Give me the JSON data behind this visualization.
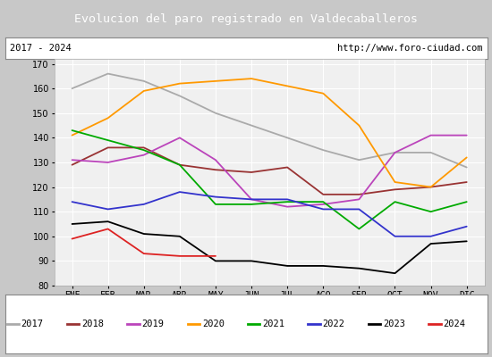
{
  "title": "Evolucion del paro registrado en Valdecaballeros",
  "subtitle_left": "2017 - 2024",
  "subtitle_right": "http://www.foro-ciudad.com",
  "title_bg_color": "#5b8dd9",
  "title_text_color": "#ffffff",
  "subtitle_bg_color": "#ffffff",
  "subtitle_text_color": "#000000",
  "plot_bg_color": "#f0f0f0",
  "outer_bg_color": "#c8c8c8",
  "months": [
    "ENE",
    "FEB",
    "MAR",
    "ABR",
    "MAY",
    "JUN",
    "JUL",
    "AGO",
    "SEP",
    "OCT",
    "NOV",
    "DIC"
  ],
  "ylim": [
    80,
    172
  ],
  "yticks": [
    80,
    90,
    100,
    110,
    120,
    130,
    140,
    150,
    160,
    170
  ],
  "series": {
    "2017": {
      "color": "#aaaaaa",
      "data": [
        160,
        166,
        163,
        157,
        150,
        145,
        140,
        135,
        131,
        134,
        134,
        128
      ]
    },
    "2018": {
      "color": "#993333",
      "data": [
        129,
        136,
        136,
        129,
        127,
        126,
        128,
        117,
        117,
        119,
        120,
        122
      ]
    },
    "2019": {
      "color": "#bb44bb",
      "data": [
        131,
        130,
        133,
        140,
        131,
        115,
        112,
        113,
        115,
        134,
        141,
        141
      ]
    },
    "2020": {
      "color": "#ff9900",
      "data": [
        141,
        148,
        159,
        162,
        163,
        164,
        161,
        158,
        145,
        122,
        120,
        132
      ]
    },
    "2021": {
      "color": "#00aa00",
      "data": [
        143,
        139,
        135,
        129,
        113,
        113,
        114,
        114,
        103,
        114,
        110,
        114
      ]
    },
    "2022": {
      "color": "#3333cc",
      "data": [
        114,
        111,
        113,
        118,
        116,
        115,
        115,
        111,
        111,
        100,
        100,
        104
      ]
    },
    "2023": {
      "color": "#000000",
      "data": [
        105,
        106,
        101,
        100,
        90,
        90,
        88,
        88,
        87,
        85,
        97,
        98
      ]
    },
    "2024": {
      "color": "#dd2222",
      "data": [
        99,
        103,
        93,
        92,
        92,
        null,
        null,
        null,
        null,
        null,
        null,
        null
      ]
    }
  },
  "figsize": [
    5.5,
    4.0
  ],
  "dpi": 100
}
